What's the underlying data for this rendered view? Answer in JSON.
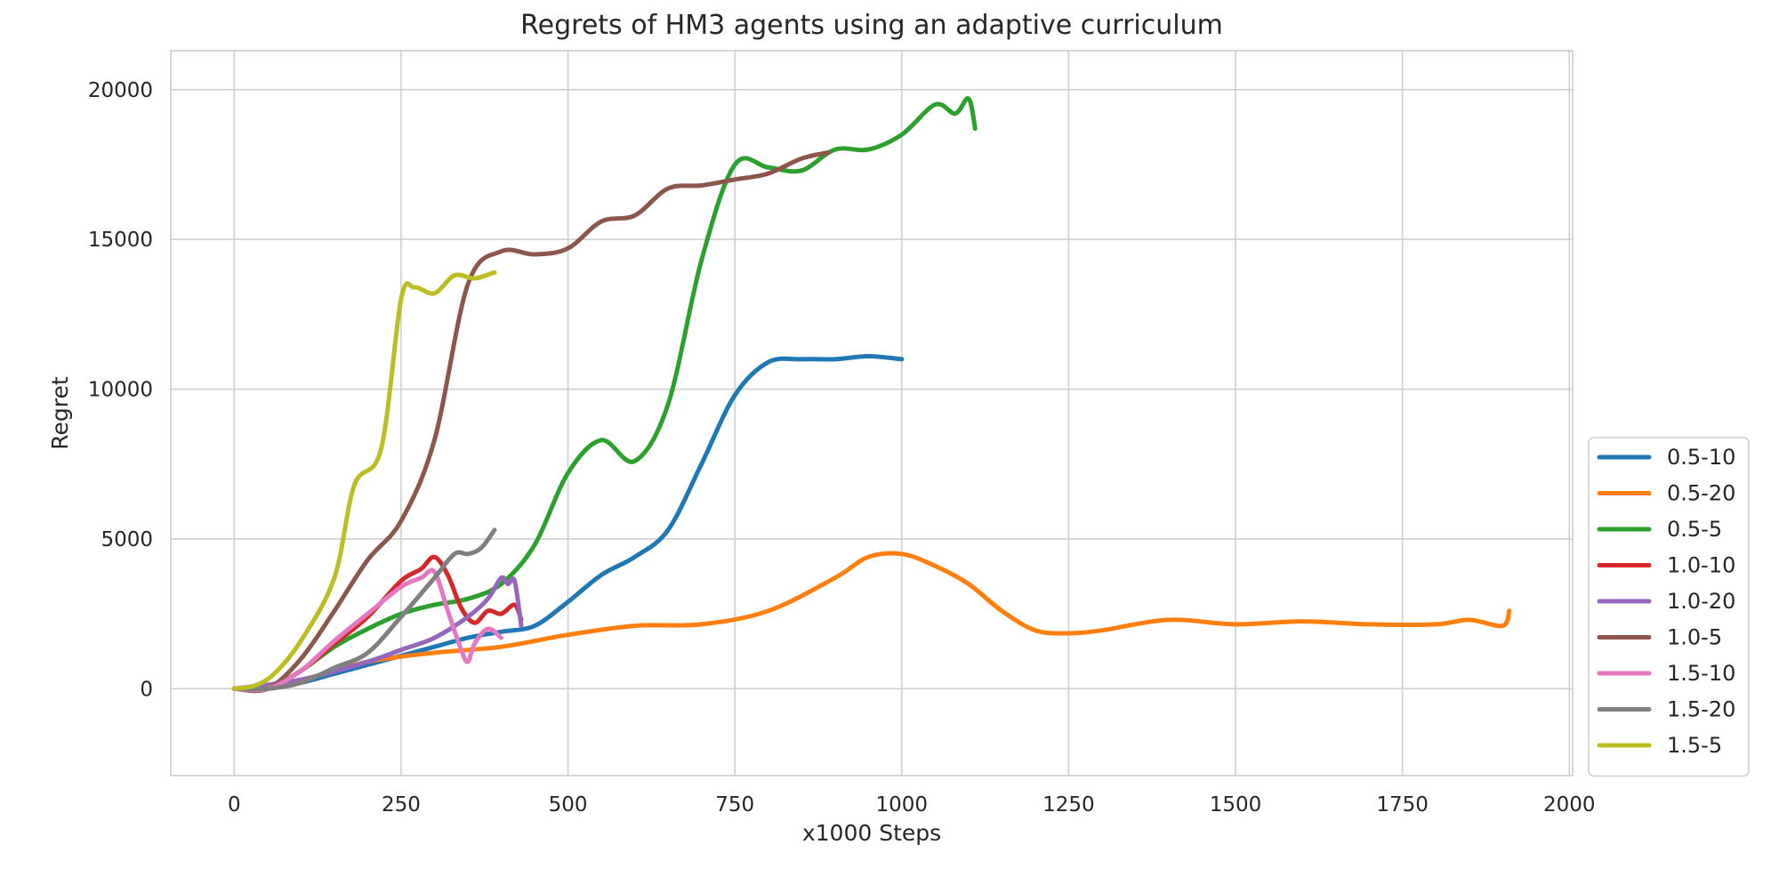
{
  "chart_data": {
    "type": "line",
    "title": "Regrets of HM3 agents using an adaptive curriculum",
    "xlabel": "x1000 Steps",
    "ylabel": "Regret",
    "xlim": [
      -95,
      2005
    ],
    "ylim": [
      -2900,
      21300
    ],
    "xticks": [
      0,
      250,
      500,
      750,
      1000,
      1250,
      1500,
      1750,
      2000
    ],
    "yticks": [
      0,
      5000,
      10000,
      15000,
      20000
    ],
    "grid": true,
    "legend_position": "lower-right-outside",
    "series": [
      {
        "name": "0.5-10",
        "color": "#1f77b4",
        "x": [
          0,
          50,
          100,
          150,
          200,
          250,
          300,
          350,
          400,
          450,
          500,
          550,
          600,
          650,
          700,
          750,
          800,
          850,
          900,
          950,
          1000
        ],
        "y": [
          0,
          0,
          200,
          500,
          800,
          1100,
          1400,
          1700,
          1900,
          2100,
          2900,
          3800,
          4400,
          5300,
          7500,
          9800,
          10900,
          11000,
          11000,
          11100,
          11000
        ]
      },
      {
        "name": "0.5-20",
        "color": "#ff7f0e",
        "x": [
          0,
          100,
          200,
          300,
          400,
          500,
          600,
          700,
          800,
          900,
          950,
          1000,
          1050,
          1100,
          1150,
          1200,
          1250,
          1300,
          1400,
          1500,
          1600,
          1700,
          1800,
          1850,
          1900,
          1910
        ],
        "y": [
          0,
          300,
          900,
          1200,
          1400,
          1800,
          2100,
          2150,
          2600,
          3700,
          4400,
          4500,
          4100,
          3500,
          2600,
          1950,
          1850,
          1950,
          2300,
          2150,
          2250,
          2150,
          2150,
          2300,
          2100,
          2600
        ]
      },
      {
        "name": "0.5-5",
        "color": "#2ca02c",
        "x": [
          0,
          50,
          100,
          150,
          200,
          250,
          300,
          350,
          400,
          450,
          500,
          550,
          600,
          650,
          700,
          750,
          800,
          850,
          900,
          950,
          1000,
          1050,
          1080,
          1100,
          1110
        ],
        "y": [
          0,
          0,
          600,
          1400,
          2000,
          2500,
          2800,
          3000,
          3500,
          4800,
          7200,
          8300,
          7600,
          9500,
          14300,
          17500,
          17400,
          17300,
          18000,
          18000,
          18500,
          19500,
          19200,
          19700,
          18700
        ]
      },
      {
        "name": "1.0-10",
        "color": "#d62728",
        "x": [
          0,
          50,
          100,
          150,
          200,
          250,
          280,
          300,
          320,
          340,
          360,
          380,
          400,
          420,
          430
        ],
        "y": [
          0,
          0,
          600,
          1500,
          2400,
          3600,
          4000,
          4400,
          3800,
          2700,
          2200,
          2600,
          2500,
          2800,
          2300
        ]
      },
      {
        "name": "1.0-20",
        "color": "#9467bd",
        "x": [
          0,
          100,
          200,
          250,
          300,
          350,
          380,
          400,
          410,
          420,
          430
        ],
        "y": [
          0,
          300,
          900,
          1300,
          1700,
          2400,
          3000,
          3700,
          3500,
          3600,
          2100
        ]
      },
      {
        "name": "1.0-5",
        "color": "#8c564b",
        "x": [
          0,
          50,
          100,
          150,
          200,
          250,
          300,
          350,
          400,
          450,
          500,
          550,
          600,
          650,
          700,
          750,
          800,
          850,
          890
        ],
        "y": [
          0,
          0,
          1000,
          2600,
          4300,
          5600,
          8300,
          13500,
          14600,
          14500,
          14700,
          15600,
          15800,
          16700,
          16800,
          17000,
          17200,
          17700,
          17900
        ]
      },
      {
        "name": "1.5-10",
        "color": "#e377c2",
        "x": [
          0,
          50,
          100,
          150,
          200,
          250,
          280,
          300,
          320,
          340,
          350,
          360,
          380,
          400
        ],
        "y": [
          0,
          0,
          600,
          1600,
          2500,
          3400,
          3700,
          3900,
          2600,
          1300,
          900,
          1500,
          2000,
          1700
        ]
      },
      {
        "name": "1.5-20",
        "color": "#7f7f7f",
        "x": [
          0,
          50,
          100,
          150,
          200,
          250,
          300,
          330,
          350,
          370,
          390
        ],
        "y": [
          0,
          0,
          200,
          700,
          1200,
          2400,
          3700,
          4500,
          4500,
          4700,
          5300
        ]
      },
      {
        "name": "1.5-5",
        "color": "#bcbd22",
        "x": [
          0,
          30,
          60,
          100,
          150,
          180,
          220,
          250,
          270,
          300,
          330,
          360,
          390
        ],
        "y": [
          0,
          100,
          500,
          1600,
          3700,
          6800,
          8000,
          13000,
          13400,
          13200,
          13800,
          13700,
          13900
        ]
      }
    ]
  }
}
